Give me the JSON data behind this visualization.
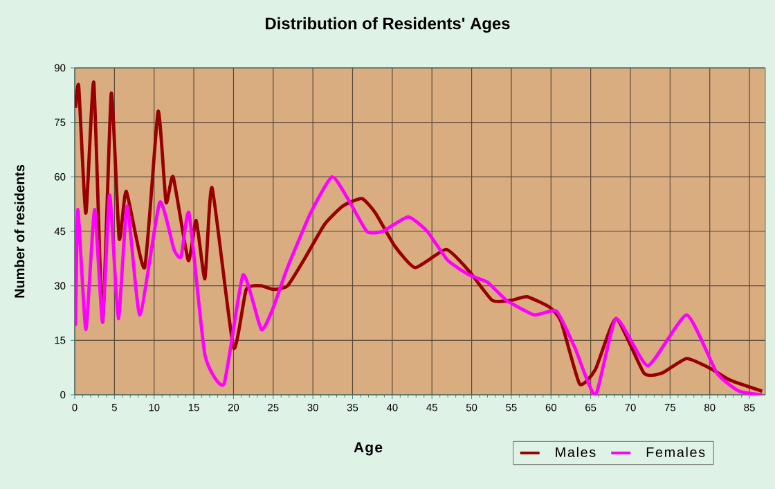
{
  "chart_data": {
    "type": "line",
    "title": "Distribution of Residents' Ages",
    "xlabel": "Age",
    "ylabel": "Number of residents",
    "xlim": [
      0,
      87
    ],
    "ylim": [
      0,
      90
    ],
    "xticks": [
      0,
      5,
      10,
      15,
      20,
      25,
      30,
      35,
      40,
      45,
      50,
      55,
      60,
      65,
      70,
      75,
      80,
      85
    ],
    "yticks": [
      0,
      15,
      30,
      45,
      60,
      75,
      90
    ],
    "grid": true,
    "legend": "bottom right",
    "series": [
      {
        "name": "Males",
        "color": "#990000",
        "x": [
          0.1,
          0.5,
          1.4,
          2.4,
          3.5,
          4.6,
          5.6,
          6.5,
          8.8,
          10.5,
          11.5,
          12.4,
          14.3,
          15.3,
          16.4,
          17.3,
          20,
          21.6,
          23.5,
          25,
          26.8,
          29.1,
          31.5,
          33.8,
          36.2,
          37.9,
          40.3,
          42.9,
          46.8,
          49.7,
          52.6,
          55,
          57,
          59.9,
          61.3,
          63.6,
          65.6,
          68.2,
          71.7,
          74,
          77.1,
          80.3,
          82.6,
          86.6
        ],
        "values": [
          79,
          85,
          50,
          86,
          20,
          83,
          43,
          56,
          35,
          78,
          53,
          60,
          37,
          48,
          32,
          57,
          13,
          29,
          30,
          29,
          30,
          38,
          47,
          52,
          54,
          50,
          41,
          35,
          40,
          34,
          26,
          26,
          27,
          24,
          20,
          3,
          7,
          21,
          6,
          6,
          10,
          7,
          4,
          1
        ]
      },
      {
        "name": "Females",
        "color": "#ff00ff",
        "x": [
          0.1,
          0.4,
          1.4,
          2.5,
          3.5,
          4.4,
          5.5,
          6.6,
          8.2,
          10.7,
          12.5,
          13.4,
          14.4,
          16.4,
          18.8,
          21.2,
          23.5,
          25,
          26.8,
          29.7,
          32.4,
          34.4,
          36.8,
          38.8,
          42,
          44.4,
          47,
          49.7,
          52,
          54.4,
          57.9,
          60.7,
          63,
          65.6,
          68.2,
          72.2,
          77.1,
          80.9,
          83.7,
          86.6
        ],
        "values": [
          19,
          51,
          18,
          51,
          20,
          55,
          21,
          52,
          22,
          53,
          40,
          38,
          50,
          11,
          3,
          33,
          18,
          24,
          35,
          50,
          60,
          54,
          45,
          45,
          49,
          45,
          37,
          33,
          31,
          26,
          22,
          23,
          13,
          0,
          21,
          8,
          22,
          6,
          1,
          0
        ]
      }
    ]
  }
}
